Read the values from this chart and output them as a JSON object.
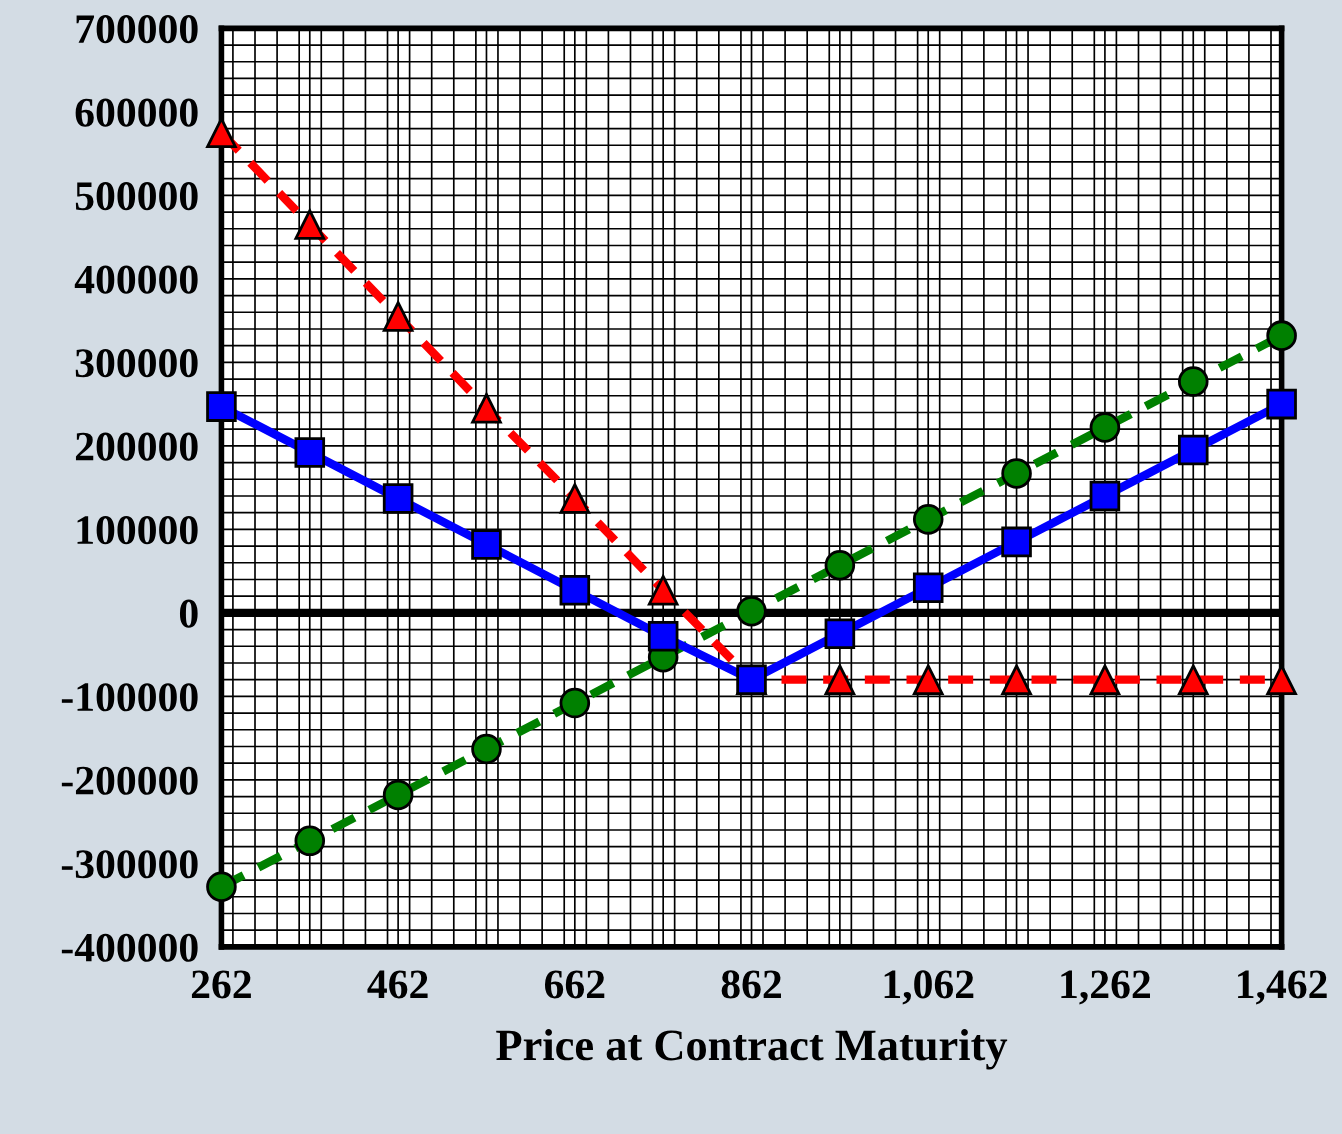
{
  "chart_data": {
    "type": "line",
    "xlabel": "Price at Contract Maturity",
    "x": [
      262,
      362,
      462,
      562,
      662,
      762,
      862,
      962,
      1062,
      1162,
      1262,
      1362,
      1462
    ],
    "series": [
      {
        "color": "#ff0000",
        "marker": "triangle",
        "line_style": "dashed",
        "values": [
          575000,
          465000,
          355000,
          245000,
          137000,
          27000,
          -80000,
          -80000,
          -80000,
          -80000,
          -80000,
          -80000,
          -80000
        ]
      },
      {
        "color": "#008000",
        "marker": "circle",
        "line_style": "dashed",
        "values": [
          -328000,
          -273000,
          -218000,
          -163000,
          -108000,
          -53000,
          2000,
          57000,
          112000,
          167000,
          222000,
          277000,
          332000
        ]
      },
      {
        "color": "#0000ff",
        "marker": "square",
        "line_style": "solid",
        "values": [
          247000,
          192000,
          137000,
          82000,
          27000,
          -28000,
          -80000,
          -25000,
          30000,
          85000,
          140000,
          195000,
          250000
        ]
      }
    ],
    "xlim": [
      262,
      1462
    ],
    "xticks": [
      262,
      {
        "value": 362,
        "label": null
      },
      462,
      {
        "value": 562,
        "label": null
      },
      662,
      {
        "value": 762,
        "label": null
      },
      862,
      {
        "value": 962,
        "label": null
      },
      {
        "value": 1062,
        "label": "1,062"
      },
      {
        "value": 1162,
        "label": null
      },
      {
        "value": 1262,
        "label": "1,262"
      },
      {
        "value": 1362,
        "label": null
      },
      {
        "value": 1462,
        "label": "1,462"
      }
    ],
    "ylim": [
      -400000,
      700000
    ],
    "yticks": [
      -400000,
      -300000,
      -200000,
      -100000,
      0,
      100000,
      200000,
      300000,
      400000,
      500000,
      600000,
      700000
    ],
    "ref_lines": [
      {
        "axis": "y",
        "value": 0,
        "color": "#000000"
      }
    ],
    "grid": true,
    "legend": false
  }
}
